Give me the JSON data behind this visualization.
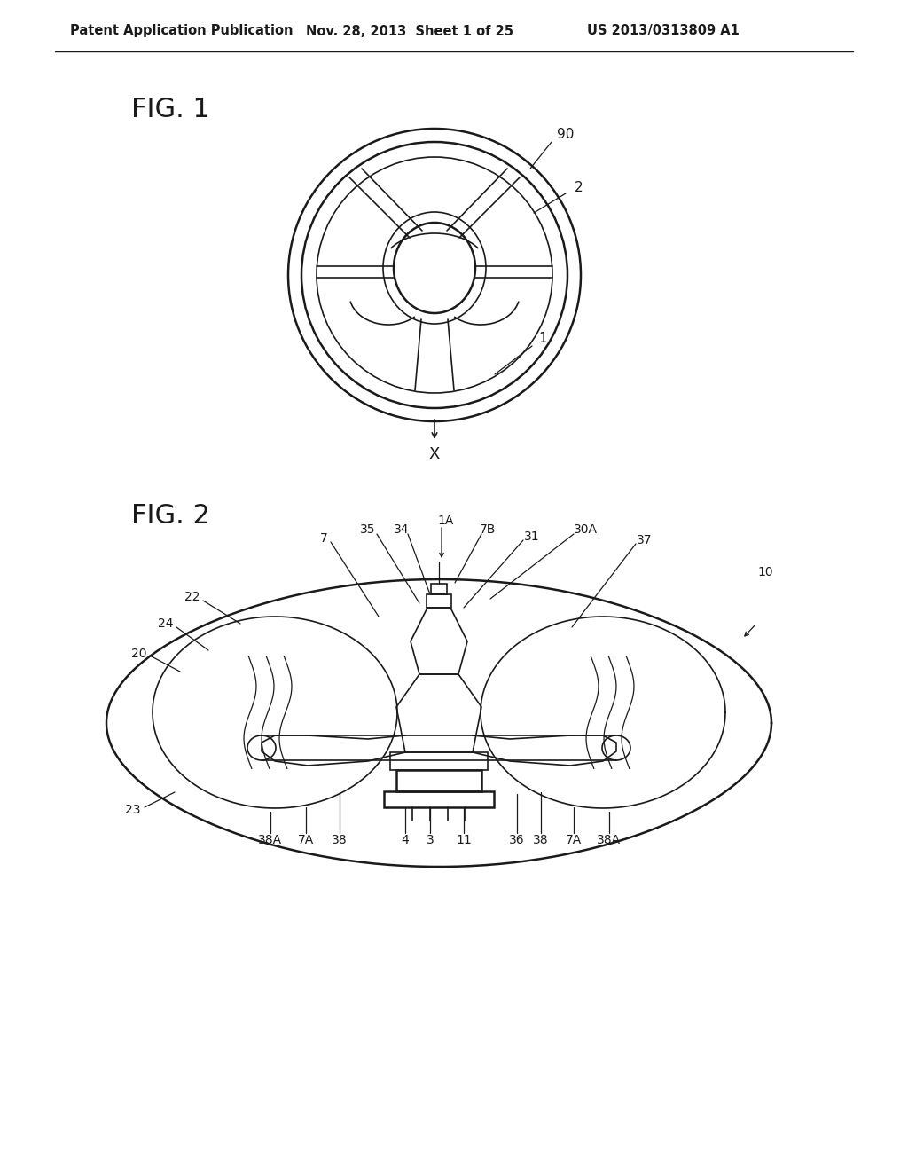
{
  "bg_color": "#ffffff",
  "lc": "#1a1a1a",
  "header_left": "Patent Application Publication",
  "header_mid": "Nov. 28, 2013  Sheet 1 of 25",
  "header_right": "US 2013/0313809 A1",
  "fig1_label": "FIG. 1",
  "fig2_label": "FIG. 2"
}
